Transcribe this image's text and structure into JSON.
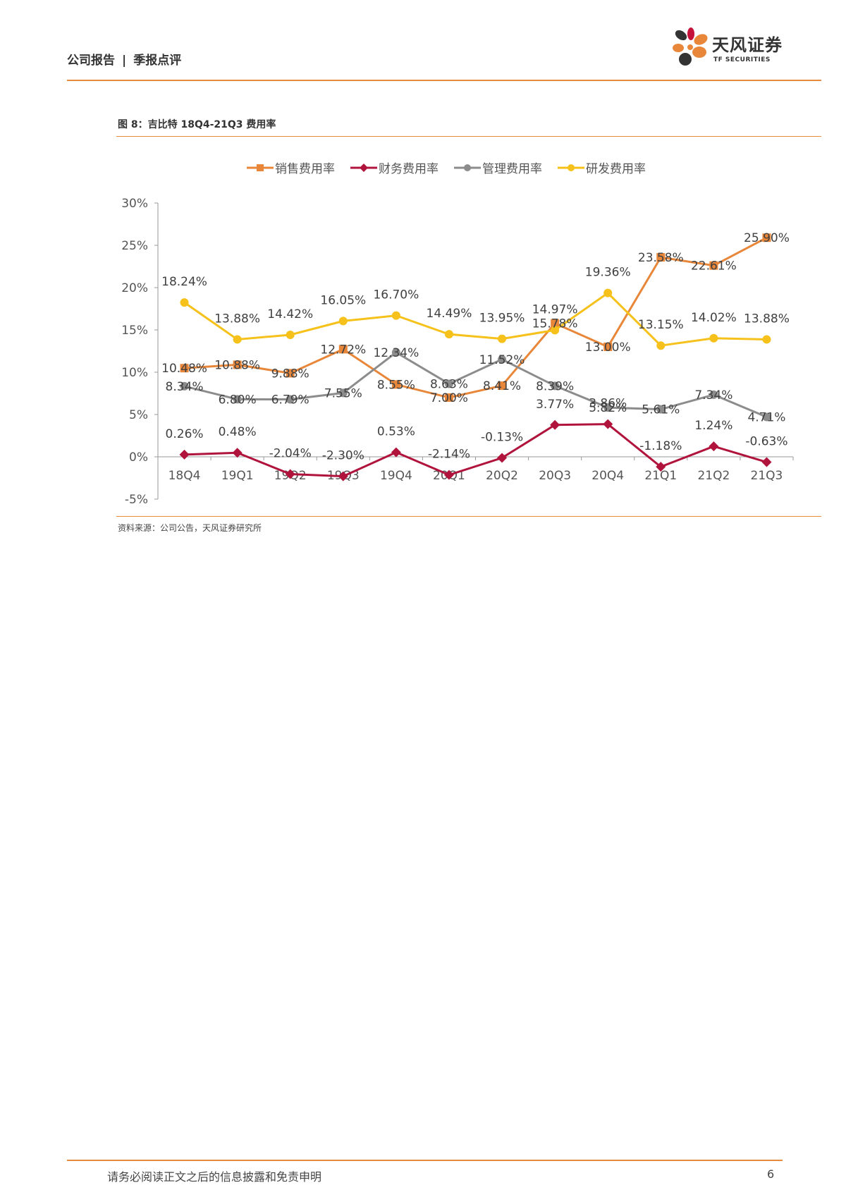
{
  "header": {
    "report_type": "公司报告",
    "section": "季报点评",
    "separator": "|"
  },
  "brand": {
    "name": "天风证券",
    "sub": "TF SECURITIES",
    "colors": [
      "#e8873a",
      "#c4123a",
      "#333333"
    ]
  },
  "figure": {
    "title": "图 8：吉比特 18Q4-21Q3 费用率",
    "source": "资料来源：公司公告，天风证券研究所"
  },
  "chart_data": {
    "type": "line",
    "categories": [
      "18Q4",
      "19Q1",
      "19Q2",
      "19Q3",
      "19Q4",
      "20Q1",
      "20Q2",
      "20Q3",
      "20Q4",
      "21Q1",
      "21Q2",
      "21Q3"
    ],
    "ylim": [
      -5,
      30
    ],
    "yticks": [
      "-5%",
      "0%",
      "5%",
      "10%",
      "15%",
      "20%",
      "25%",
      "30%"
    ],
    "ytick_values": [
      -5,
      0,
      5,
      10,
      15,
      20,
      25,
      30
    ],
    "legend_position": "top",
    "grid": false,
    "series": [
      {
        "name": "销售费用率",
        "color": "#e8873a",
        "marker": "square",
        "values": [
          10.48,
          10.88,
          9.88,
          12.72,
          8.55,
          7.0,
          8.41,
          15.78,
          13.0,
          23.58,
          22.61,
          25.9
        ],
        "labels": [
          "10.48%",
          "10.88%",
          "9.88%",
          "12.72%",
          "8.55%",
          "7.00%",
          "8.41%",
          "15.78%",
          "13.00%",
          "23.58%",
          "22.61%",
          "25.90%"
        ]
      },
      {
        "name": "财务费用率",
        "color": "#b0143c",
        "marker": "diamond",
        "values": [
          0.26,
          0.48,
          -2.04,
          -2.3,
          0.53,
          -2.14,
          -0.13,
          3.77,
          3.86,
          -1.18,
          1.24,
          -0.63
        ],
        "labels": [
          "0.26%",
          "0.48%",
          "-2.04%",
          "-2.30%",
          "0.53%",
          "-2.14%",
          "-0.13%",
          "3.77%",
          "3.86%",
          "-1.18%",
          "1.24%",
          "-0.63%"
        ]
      },
      {
        "name": "管理费用率",
        "color": "#8c8c8c",
        "marker": "circle",
        "values": [
          8.34,
          6.8,
          6.79,
          7.55,
          12.34,
          8.63,
          11.52,
          8.39,
          5.82,
          5.61,
          7.34,
          4.71
        ],
        "labels": [
          "8.34%",
          "6.80%",
          "6.79%",
          "7.55%",
          "12.34%",
          "8.63%",
          "11.52%",
          "8.39%",
          "5.82%",
          "5.61%",
          "7.34%",
          "4.71%"
        ]
      },
      {
        "name": "研发费用率",
        "color": "#f5c11a",
        "marker": "circle",
        "values": [
          18.24,
          13.88,
          14.42,
          16.05,
          16.7,
          14.49,
          13.95,
          14.97,
          19.36,
          13.15,
          14.02,
          13.88
        ],
        "labels": [
          "18.24%",
          "13.88%",
          "14.42%",
          "16.05%",
          "16.70%",
          "14.49%",
          "13.95%",
          "14.97%",
          "19.36%",
          "13.15%",
          "14.02%",
          "13.88%"
        ]
      }
    ]
  },
  "footer": {
    "disclaimer": "请务必阅读正文之后的信息披露和免责申明",
    "page": "6"
  }
}
